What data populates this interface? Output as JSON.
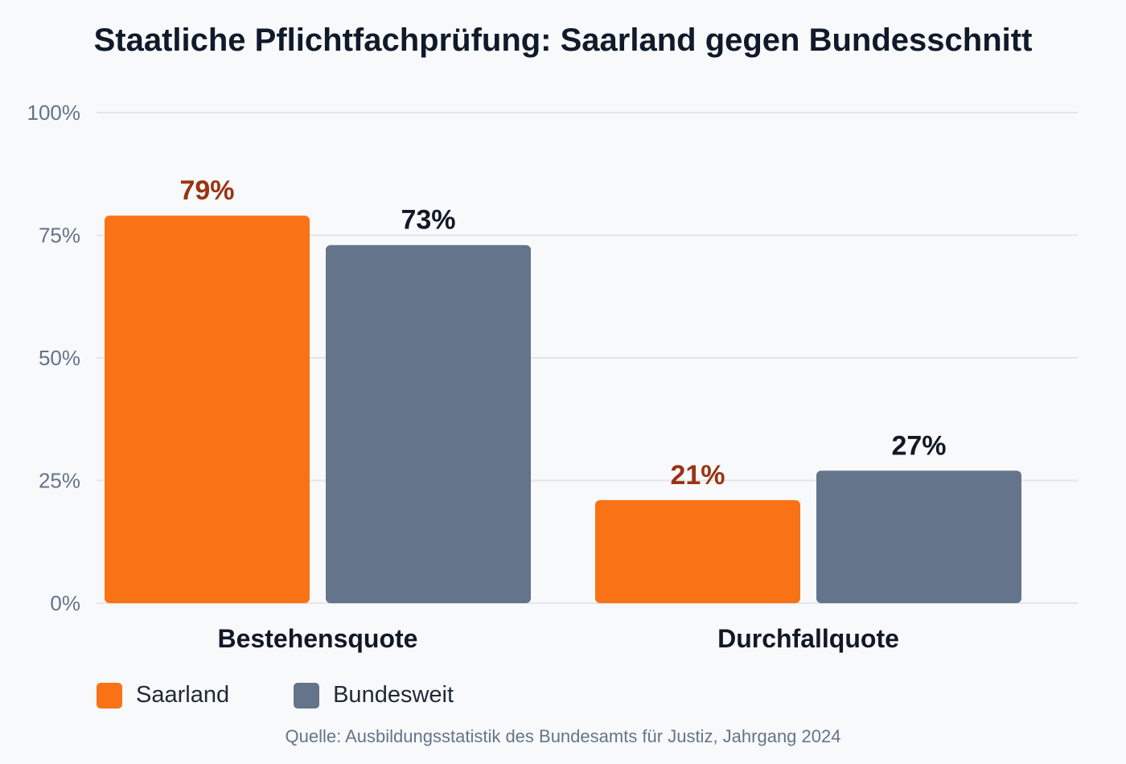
{
  "chart_data": {
    "type": "bar",
    "title": "Staatliche Pflichtfachprüfung: Saarland gegen Bundesschnitt",
    "categories": [
      "Bestehensquote",
      "Durchfallquote"
    ],
    "series": [
      {
        "name": "Saarland",
        "values": [
          79,
          21
        ],
        "labels": [
          "79%",
          "21%"
        ],
        "color": "#f97316",
        "label_color": "#9a3412"
      },
      {
        "name": "Bundesweit",
        "values": [
          73,
          27
        ],
        "labels": [
          "73%",
          "27%"
        ],
        "color": "#64748b",
        "label_color": "#111827"
      }
    ],
    "ylim": [
      0,
      100
    ],
    "yticks": [
      0,
      25,
      50,
      75,
      100
    ],
    "ytick_labels": [
      "0%",
      "25%",
      "50%",
      "75%",
      "100%"
    ],
    "grid": true,
    "legend_position": "bottom-left",
    "source": "Quelle: Ausbildungsstatistik des Bundesamts für Justiz, Jahrgang 2024"
  }
}
